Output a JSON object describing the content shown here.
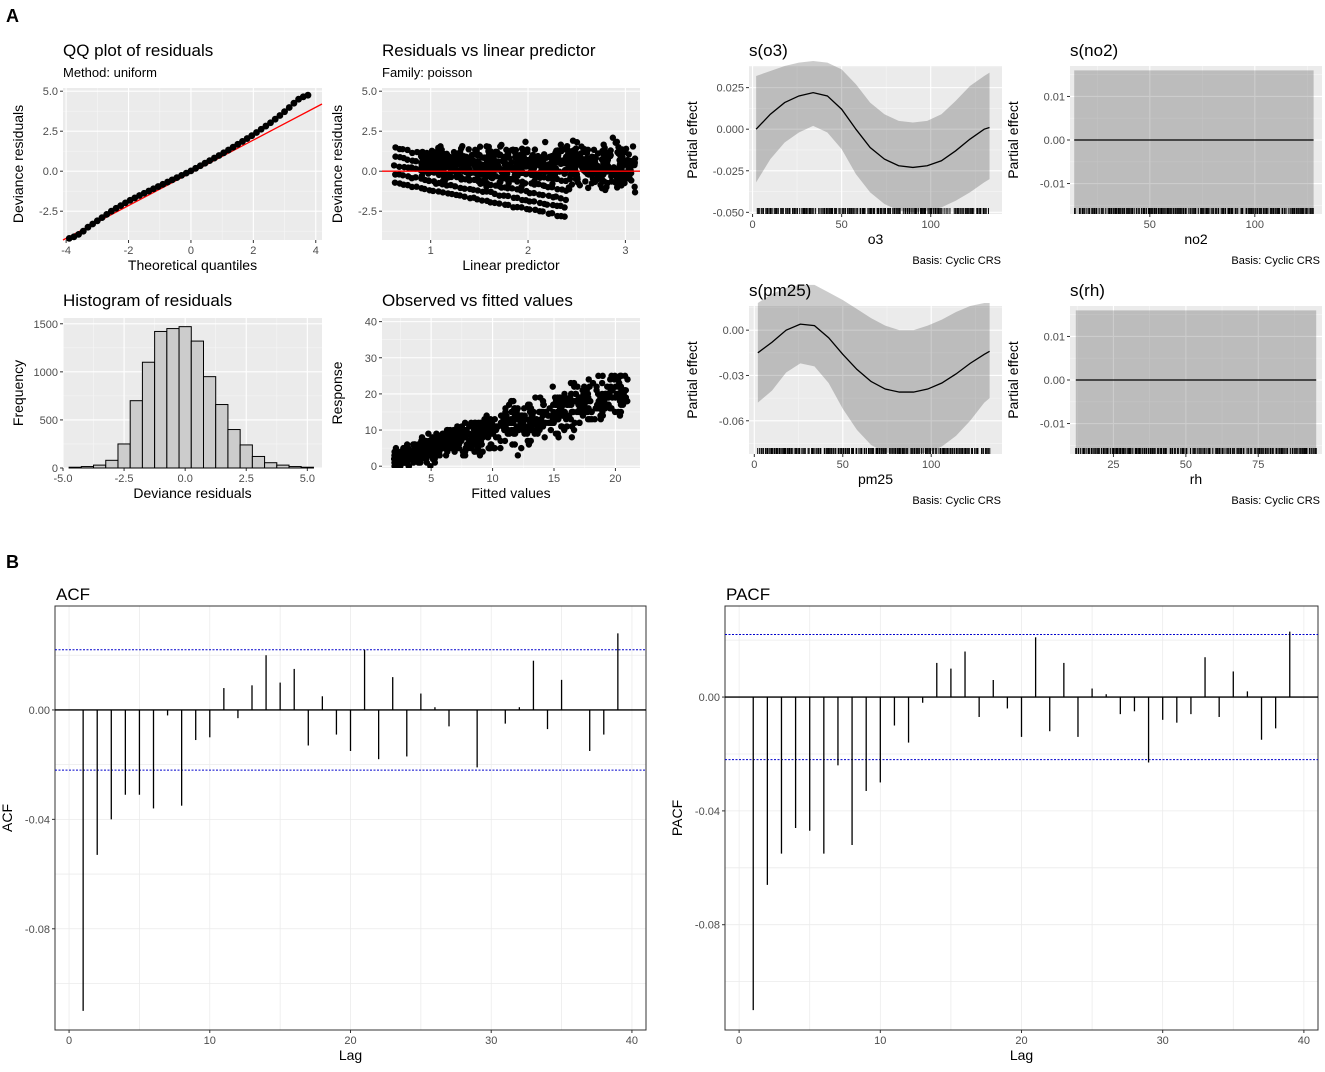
{
  "panels": {
    "A": "A",
    "B": "B"
  },
  "chart_data": [
    {
      "id": "qq",
      "type": "scatter",
      "title": "QQ plot of residuals",
      "subtitle": "Method: uniform",
      "xlabel": "Theoretical quantiles",
      "ylabel": "Deviance residuals",
      "xlim": [
        -4.1,
        4.2
      ],
      "ylim": [
        -4.3,
        5.2
      ],
      "xticks": [
        -4,
        -2,
        0,
        2,
        4
      ],
      "xtick_labels": [
        "-4",
        "-2",
        "0",
        "2",
        "4"
      ],
      "yticks": [
        -2.5,
        0,
        2.5,
        5
      ],
      "ytick_labels": [
        "-2.5",
        "0.0",
        "2.5",
        "5.0"
      ],
      "points": [
        [
          -3.9,
          -4.2
        ],
        [
          -3.75,
          -4.1
        ],
        [
          -3.6,
          -3.95
        ],
        [
          -3.45,
          -3.75
        ],
        [
          -3.3,
          -3.5
        ],
        [
          -3.15,
          -3.3
        ],
        [
          -3.0,
          -3.1
        ],
        [
          -2.85,
          -2.9
        ],
        [
          -2.7,
          -2.7
        ],
        [
          -2.55,
          -2.5
        ],
        [
          -2.4,
          -2.32
        ],
        [
          -2.25,
          -2.15
        ],
        [
          -2.1,
          -1.98
        ],
        [
          -1.95,
          -1.82
        ],
        [
          -1.8,
          -1.67
        ],
        [
          -1.65,
          -1.52
        ],
        [
          -1.5,
          -1.38
        ],
        [
          -1.35,
          -1.24
        ],
        [
          -1.2,
          -1.1
        ],
        [
          -1.05,
          -0.96
        ],
        [
          -0.9,
          -0.82
        ],
        [
          -0.75,
          -0.68
        ],
        [
          -0.6,
          -0.54
        ],
        [
          -0.45,
          -0.4
        ],
        [
          -0.3,
          -0.26
        ],
        [
          -0.15,
          -0.12
        ],
        [
          0.0,
          0.02
        ],
        [
          0.15,
          0.18
        ],
        [
          0.3,
          0.34
        ],
        [
          0.45,
          0.5
        ],
        [
          0.6,
          0.66
        ],
        [
          0.75,
          0.82
        ],
        [
          0.9,
          0.98
        ],
        [
          1.05,
          1.15
        ],
        [
          1.2,
          1.32
        ],
        [
          1.35,
          1.5
        ],
        [
          1.5,
          1.68
        ],
        [
          1.65,
          1.86
        ],
        [
          1.8,
          2.04
        ],
        [
          1.95,
          2.22
        ],
        [
          2.1,
          2.42
        ],
        [
          2.25,
          2.62
        ],
        [
          2.4,
          2.82
        ],
        [
          2.55,
          3.03
        ],
        [
          2.7,
          3.25
        ],
        [
          2.85,
          3.48
        ],
        [
          3.0,
          3.72
        ],
        [
          3.15,
          3.98
        ],
        [
          3.3,
          4.25
        ],
        [
          3.45,
          4.5
        ],
        [
          3.6,
          4.65
        ],
        [
          3.75,
          4.75
        ]
      ],
      "reference_line": {
        "color": "#ff0000",
        "from": [
          -4.1,
          -4.3
        ],
        "to": [
          4.2,
          4.2
        ]
      }
    },
    {
      "id": "resid_lp",
      "type": "scatter",
      "title": "Residuals vs linear predictor",
      "subtitle": "Family: poisson",
      "xlabel": "Linear predictor",
      "ylabel": "Deviance residuals",
      "xlim": [
        0.5,
        3.15
      ],
      "ylim": [
        -4.3,
        5.2
      ],
      "xticks": [
        1,
        2,
        3
      ],
      "xtick_labels": [
        "1",
        "2",
        "3"
      ],
      "yticks": [
        -2.5,
        0,
        2.5,
        5
      ],
      "ytick_labels": [
        "-2.5",
        "0.0",
        "2.5",
        "5.0"
      ],
      "hline": {
        "y": 0,
        "color": "#ff0000"
      }
    },
    {
      "id": "hist",
      "type": "bar",
      "title": "Histogram of residuals",
      "xlabel": "Deviance residuals",
      "ylabel": "Frequency",
      "xlim": [
        -5.0,
        5.6
      ],
      "ylim": [
        0,
        1560
      ],
      "bin_width": 0.5,
      "bin_centers": [
        -4.5,
        -4.0,
        -3.5,
        -3.0,
        -2.5,
        -2.0,
        -1.5,
        -1.0,
        -0.5,
        0.0,
        0.5,
        1.0,
        1.5,
        2.0,
        2.5,
        3.0,
        3.5,
        4.0,
        4.5,
        5.0
      ],
      "counts": [
        8,
        15,
        30,
        80,
        250,
        700,
        1100,
        1420,
        1450,
        1470,
        1320,
        950,
        660,
        400,
        240,
        120,
        55,
        30,
        15,
        8
      ],
      "xticks": [
        -5,
        -2.5,
        0,
        2.5,
        5
      ],
      "xtick_labels": [
        "-5.0",
        "-2.5",
        "0.0",
        "2.5",
        "5.0"
      ],
      "yticks": [
        0,
        500,
        1000,
        1500
      ],
      "ytick_labels": [
        "0",
        "500",
        "1000",
        "1500"
      ]
    },
    {
      "id": "obs_fit",
      "type": "scatter",
      "title": "Observed vs fitted values",
      "xlabel": "Fitted values",
      "ylabel": "Response",
      "xlim": [
        1,
        22
      ],
      "ylim": [
        -0.5,
        41
      ],
      "xticks": [
        5,
        10,
        15,
        20
      ],
      "xtick_labels": [
        "5",
        "10",
        "15",
        "20"
      ],
      "yticks": [
        0,
        10,
        20,
        30,
        40
      ],
      "ytick_labels": [
        "0",
        "10",
        "20",
        "30",
        "40"
      ]
    },
    {
      "id": "s_o3",
      "type": "line",
      "title": "s(o3)",
      "xlabel": "o3",
      "ylabel": "Partial effect",
      "caption": "Basis: Cyclic CRS",
      "xlim": [
        -2,
        140
      ],
      "ylim": [
        -0.051,
        0.038
      ],
      "xticks": [
        0,
        50,
        100
      ],
      "xtick_labels": [
        "0",
        "50",
        "100"
      ],
      "yticks": [
        -0.05,
        -0.025,
        0.0,
        0.025
      ],
      "ytick_labels": [
        "-0.050",
        "-0.025",
        "0.000",
        "0.025"
      ],
      "x": [
        2,
        10,
        18,
        26,
        34,
        42,
        50,
        58,
        66,
        74,
        82,
        90,
        98,
        106,
        114,
        122,
        130,
        133
      ],
      "fit": [
        0.0,
        0.009,
        0.016,
        0.02,
        0.022,
        0.02,
        0.012,
        0.0,
        -0.011,
        -0.018,
        -0.022,
        -0.023,
        -0.022,
        -0.019,
        -0.013,
        -0.006,
        0.0,
        0.001
      ],
      "lower": [
        -0.032,
        -0.018,
        -0.008,
        -0.002,
        0.002,
        -0.002,
        -0.012,
        -0.027,
        -0.038,
        -0.045,
        -0.049,
        -0.05,
        -0.049,
        -0.047,
        -0.043,
        -0.038,
        -0.032,
        -0.03
      ],
      "upper": [
        0.032,
        0.035,
        0.038,
        0.04,
        0.041,
        0.04,
        0.036,
        0.027,
        0.016,
        0.009,
        0.005,
        0.004,
        0.005,
        0.009,
        0.017,
        0.026,
        0.032,
        0.034
      ]
    },
    {
      "id": "s_no2",
      "type": "line",
      "title": "s(no2)",
      "xlabel": "no2",
      "ylabel": "Partial effect",
      "caption": "Basis: Cyclic CRS",
      "xlim": [
        12,
        132
      ],
      "ylim": [
        -0.017,
        0.017
      ],
      "xticks": [
        50,
        100
      ],
      "xtick_labels": [
        "50",
        "100"
      ],
      "yticks": [
        -0.01,
        0.0,
        0.01
      ],
      "ytick_labels": [
        "-0.01",
        "0.00",
        "0.01"
      ],
      "x": [
        14,
        128
      ],
      "fit": [
        0.0,
        0.0
      ],
      "lower": [
        -0.017,
        -0.017
      ],
      "upper": [
        0.016,
        0.016
      ]
    },
    {
      "id": "s_pm25",
      "type": "line",
      "title": "s(pm25)",
      "xlabel": "pm25",
      "ylabel": "Partial effect",
      "caption": "Basis: Cyclic CRS",
      "xlim": [
        -3,
        140
      ],
      "ylim": [
        -0.082,
        0.016
      ],
      "xticks": [
        0,
        50,
        100
      ],
      "xtick_labels": [
        "0",
        "50",
        "100"
      ],
      "yticks": [
        -0.06,
        -0.03,
        0.0
      ],
      "ytick_labels": [
        "-0.06",
        "-0.03",
        "0.00"
      ],
      "x": [
        2,
        10,
        18,
        26,
        34,
        42,
        50,
        58,
        66,
        74,
        82,
        90,
        98,
        106,
        114,
        122,
        130,
        133
      ],
      "fit": [
        -0.015,
        -0.008,
        0.0,
        0.004,
        0.003,
        -0.005,
        -0.016,
        -0.026,
        -0.034,
        -0.039,
        -0.041,
        -0.041,
        -0.039,
        -0.035,
        -0.029,
        -0.022,
        -0.016,
        -0.014
      ],
      "lower": [
        -0.048,
        -0.04,
        -0.028,
        -0.022,
        -0.024,
        -0.035,
        -0.052,
        -0.066,
        -0.076,
        -0.081,
        -0.082,
        -0.082,
        -0.081,
        -0.077,
        -0.07,
        -0.06,
        -0.048,
        -0.045
      ],
      "upper": [
        0.018,
        0.024,
        0.028,
        0.03,
        0.03,
        0.025,
        0.02,
        0.014,
        0.008,
        0.003,
        0.0,
        0.0,
        0.003,
        0.007,
        0.012,
        0.016,
        0.018,
        0.018
      ]
    },
    {
      "id": "s_rh",
      "type": "line",
      "title": "s(rh)",
      "xlabel": "rh",
      "ylabel": "Partial effect",
      "caption": "Basis: Cyclic CRS",
      "xlim": [
        10,
        97
      ],
      "ylim": [
        -0.017,
        0.017
      ],
      "xticks": [
        25,
        50,
        75
      ],
      "xtick_labels": [
        "25",
        "50",
        "75"
      ],
      "yticks": [
        -0.01,
        0.0,
        0.01
      ],
      "ytick_labels": [
        "-0.01",
        "0.00",
        "0.01"
      ],
      "x": [
        12,
        95
      ],
      "fit": [
        0.0,
        0.0
      ],
      "lower": [
        -0.017,
        -0.017
      ],
      "upper": [
        0.016,
        0.016
      ]
    },
    {
      "id": "acf",
      "type": "bar",
      "title": "ACF",
      "xlabel": "Lag",
      "ylabel": "ACF",
      "xlim": [
        -1,
        41
      ],
      "ylim": [
        -0.117,
        0.038
      ],
      "xticks": [
        0,
        10,
        20,
        30,
        40
      ],
      "xtick_labels": [
        "0",
        "10",
        "20",
        "30",
        "40"
      ],
      "yticks": [
        -0.08,
        -0.04,
        0.0
      ],
      "ytick_labels": [
        "-0.08",
        "-0.04",
        "0.00"
      ],
      "ci": 0.022,
      "lags": [
        1,
        2,
        3,
        4,
        5,
        6,
        7,
        8,
        9,
        10,
        11,
        12,
        13,
        14,
        15,
        16,
        17,
        18,
        19,
        20,
        21,
        22,
        23,
        24,
        25,
        26,
        27,
        28,
        29,
        30,
        31,
        32,
        33,
        34,
        35,
        36,
        37,
        38,
        39
      ],
      "values": [
        -0.11,
        -0.053,
        -0.04,
        -0.031,
        -0.031,
        -0.036,
        -0.002,
        -0.035,
        -0.011,
        -0.01,
        0.008,
        -0.003,
        0.009,
        0.02,
        0.01,
        0.015,
        -0.013,
        0.005,
        -0.009,
        -0.015,
        0.022,
        -0.018,
        0.012,
        -0.017,
        0.006,
        0.001,
        -0.006,
        0.0,
        -0.021,
        0.0,
        -0.005,
        0.001,
        0.018,
        -0.007,
        0.011,
        0.0,
        -0.015,
        -0.009,
        0.028
      ]
    },
    {
      "id": "pacf",
      "type": "bar",
      "title": "PACF",
      "xlabel": "Lag",
      "ylabel": "PACF",
      "xlim": [
        -1,
        41
      ],
      "ylim": [
        -0.117,
        0.032
      ],
      "xticks": [
        0,
        10,
        20,
        30,
        40
      ],
      "xtick_labels": [
        "0",
        "10",
        "20",
        "30",
        "40"
      ],
      "yticks": [
        -0.08,
        -0.04,
        0.0
      ],
      "ytick_labels": [
        "-0.08",
        "-0.04",
        "0.00"
      ],
      "ci": 0.022,
      "lags": [
        1,
        2,
        3,
        4,
        5,
        6,
        7,
        8,
        9,
        10,
        11,
        12,
        13,
        14,
        15,
        16,
        17,
        18,
        19,
        20,
        21,
        22,
        23,
        24,
        25,
        26,
        27,
        28,
        29,
        30,
        31,
        32,
        33,
        34,
        35,
        36,
        37,
        38,
        39
      ],
      "values": [
        -0.11,
        -0.066,
        -0.055,
        -0.046,
        -0.047,
        -0.055,
        -0.024,
        -0.052,
        -0.033,
        -0.03,
        -0.01,
        -0.016,
        -0.002,
        0.012,
        0.01,
        0.016,
        -0.007,
        0.006,
        -0.004,
        -0.014,
        0.021,
        -0.012,
        0.012,
        -0.014,
        0.003,
        0.001,
        -0.006,
        -0.005,
        -0.023,
        -0.008,
        -0.009,
        -0.006,
        0.014,
        -0.007,
        0.009,
        0.002,
        -0.015,
        -0.011,
        0.023
      ]
    }
  ]
}
